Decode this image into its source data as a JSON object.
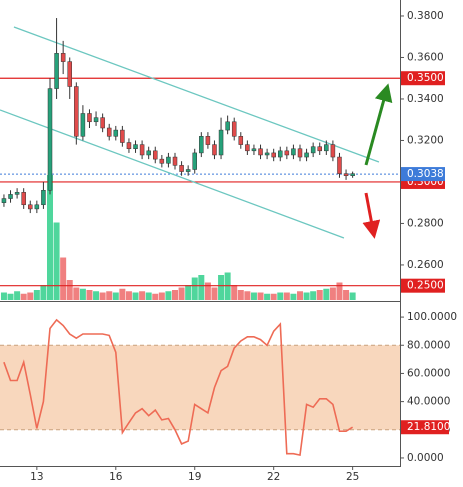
{
  "chart_data": [
    {
      "type": "candlestick",
      "xlim": [
        11.6,
        26.8
      ],
      "ylim": [
        0.2431,
        0.3877
      ],
      "yticks": [
        {
          "value": 0.38,
          "label": "0.3800"
        },
        {
          "value": 0.36,
          "label": "0.3600"
        },
        {
          "value": 0.34,
          "label": "0.3400"
        },
        {
          "value": 0.32,
          "label": "0.3200"
        },
        {
          "value": 0.28,
          "label": "0.2800"
        },
        {
          "value": 0.26,
          "label": "0.2600"
        }
      ],
      "x": [
        11.75,
        12,
        12.25,
        12.5,
        12.75,
        13,
        13.25,
        13.5,
        13.75,
        14,
        14.25,
        14.5,
        14.75,
        15,
        15.25,
        15.5,
        15.75,
        16,
        16.25,
        16.5,
        16.75,
        17,
        17.25,
        17.5,
        17.75,
        18,
        18.25,
        18.5,
        18.75,
        19,
        19.25,
        19.5,
        19.75,
        20,
        20.25,
        20.5,
        20.75,
        21,
        21.25,
        21.5,
        21.75,
        22,
        22.25,
        22.5,
        22.75,
        23,
        23.25,
        23.5,
        23.75,
        24,
        24.25,
        24.5,
        24.75,
        25
      ],
      "open": [
        0.29,
        0.292,
        0.294,
        0.295,
        0.289,
        0.287,
        0.289,
        0.296,
        0.345,
        0.362,
        0.358,
        0.346,
        0.322,
        0.333,
        0.329,
        0.331,
        0.326,
        0.322,
        0.325,
        0.319,
        0.316,
        0.318,
        0.313,
        0.315,
        0.311,
        0.309,
        0.312,
        0.308,
        0.305,
        0.306,
        0.314,
        0.322,
        0.318,
        0.313,
        0.325,
        0.329,
        0.322,
        0.318,
        0.315,
        0.316,
        0.313,
        0.314,
        0.312,
        0.315,
        0.313,
        0.316,
        0.312,
        0.314,
        0.317,
        0.315,
        0.318,
        0.312,
        0.304,
        0.303
      ],
      "high": [
        0.294,
        0.296,
        0.297,
        0.297,
        0.291,
        0.291,
        0.3,
        0.35,
        0.379,
        0.368,
        0.36,
        0.348,
        0.337,
        0.335,
        0.334,
        0.333,
        0.328,
        0.327,
        0.327,
        0.321,
        0.32,
        0.32,
        0.317,
        0.317,
        0.313,
        0.314,
        0.314,
        0.31,
        0.308,
        0.316,
        0.324,
        0.324,
        0.32,
        0.331,
        0.332,
        0.331,
        0.324,
        0.32,
        0.318,
        0.318,
        0.316,
        0.316,
        0.317,
        0.317,
        0.318,
        0.318,
        0.316,
        0.319,
        0.319,
        0.32,
        0.32,
        0.314,
        0.306,
        0.305
      ],
      "low": [
        0.288,
        0.29,
        0.292,
        0.287,
        0.285,
        0.285,
        0.287,
        0.294,
        0.34,
        0.352,
        0.34,
        0.318,
        0.32,
        0.326,
        0.327,
        0.324,
        0.32,
        0.32,
        0.317,
        0.314,
        0.314,
        0.311,
        0.311,
        0.309,
        0.307,
        0.307,
        0.306,
        0.303,
        0.303,
        0.304,
        0.312,
        0.316,
        0.311,
        0.311,
        0.323,
        0.32,
        0.316,
        0.313,
        0.313,
        0.311,
        0.311,
        0.31,
        0.31,
        0.311,
        0.311,
        0.31,
        0.31,
        0.312,
        0.313,
        0.313,
        0.31,
        0.302,
        0.301,
        0.302
      ],
      "close": [
        0.292,
        0.294,
        0.295,
        0.289,
        0.287,
        0.289,
        0.296,
        0.345,
        0.362,
        0.358,
        0.346,
        0.322,
        0.333,
        0.329,
        0.331,
        0.326,
        0.322,
        0.325,
        0.319,
        0.316,
        0.318,
        0.313,
        0.315,
        0.311,
        0.309,
        0.312,
        0.308,
        0.305,
        0.306,
        0.314,
        0.322,
        0.318,
        0.313,
        0.325,
        0.329,
        0.322,
        0.318,
        0.315,
        0.316,
        0.313,
        0.314,
        0.312,
        0.315,
        0.313,
        0.316,
        0.312,
        0.314,
        0.317,
        0.315,
        0.318,
        0.312,
        0.304,
        0.303,
        0.304
      ],
      "volume": [
        6,
        5,
        7,
        5,
        6,
        8,
        12,
        100,
        62,
        34,
        16,
        10,
        9,
        8,
        7,
        6,
        7,
        6,
        9,
        7,
        6,
        7,
        6,
        5,
        6,
        7,
        8,
        10,
        12,
        18,
        20,
        14,
        10,
        20,
        22,
        12,
        8,
        7,
        6,
        6,
        5,
        5,
        6,
        6,
        5,
        7,
        6,
        7,
        8,
        9,
        10,
        14,
        8,
        6
      ],
      "up_color": "#26a17a",
      "down_color": "#e04b4b",
      "volume_up_color": "#4fd69c",
      "volume_down_color": "#f08080",
      "levels": [
        {
          "value": 0.35,
          "label": "0.3500"
        },
        {
          "value": 0.3,
          "label": "0.3000"
        },
        {
          "value": 0.25,
          "label": "0.2500"
        }
      ],
      "level_color": "#e02020",
      "last_price": {
        "value": 0.3038,
        "label": "0.3038"
      },
      "last_price_color": "#3d7bd9",
      "trend_lines": [
        [
          [
            12.13,
            0.3747
          ],
          [
            26.0,
            0.3096
          ]
        ],
        [
          [
            11.6,
            0.3347
          ],
          [
            24.67,
            0.273
          ]
        ]
      ],
      "trend_color": "#6cc7c0"
    },
    {
      "type": "line",
      "xlim": [
        11.6,
        26.8
      ],
      "ylim": [
        -5,
        110
      ],
      "xticks": [
        13,
        16,
        19,
        22,
        25
      ],
      "yticks": [
        {
          "value": 100,
          "label": "100.0000"
        },
        {
          "value": 80,
          "label": "80.0000"
        },
        {
          "value": 60,
          "label": "60.0000"
        },
        {
          "value": 40,
          "label": "40.0000"
        },
        {
          "value": 20,
          "label": "20.0000"
        },
        {
          "value": 0,
          "label": "0.0000"
        }
      ],
      "x": [
        11.75,
        12,
        12.25,
        12.5,
        12.75,
        13,
        13.25,
        13.5,
        13.75,
        14,
        14.25,
        14.5,
        14.75,
        15,
        15.25,
        15.5,
        15.75,
        16,
        16.25,
        16.5,
        16.75,
        17,
        17.25,
        17.5,
        17.75,
        18,
        18.25,
        18.5,
        18.75,
        19,
        19.25,
        19.5,
        19.75,
        20,
        20.25,
        20.5,
        20.75,
        21,
        21.25,
        21.5,
        21.75,
        22,
        22.25,
        22.5,
        22.75,
        23,
        23.25,
        23.5,
        23.75,
        24,
        24.25,
        24.5,
        24.75,
        25
      ],
      "values": [
        68,
        55,
        55,
        68,
        45,
        21,
        40,
        92,
        98,
        94,
        88,
        85,
        88,
        88,
        88,
        88,
        87,
        75,
        18,
        25,
        32,
        35,
        30,
        34,
        27,
        28,
        20,
        10,
        12,
        38,
        35,
        32,
        50,
        62,
        65,
        78,
        83,
        86,
        86,
        84,
        80,
        90,
        95,
        3,
        3,
        2,
        38,
        36,
        42,
        42,
        38,
        19,
        19,
        21.81
      ],
      "value_labels_last": "21.8100",
      "color": "#ee6b55",
      "band": [
        20,
        80
      ],
      "band_color": "#f8d7bd"
    }
  ]
}
